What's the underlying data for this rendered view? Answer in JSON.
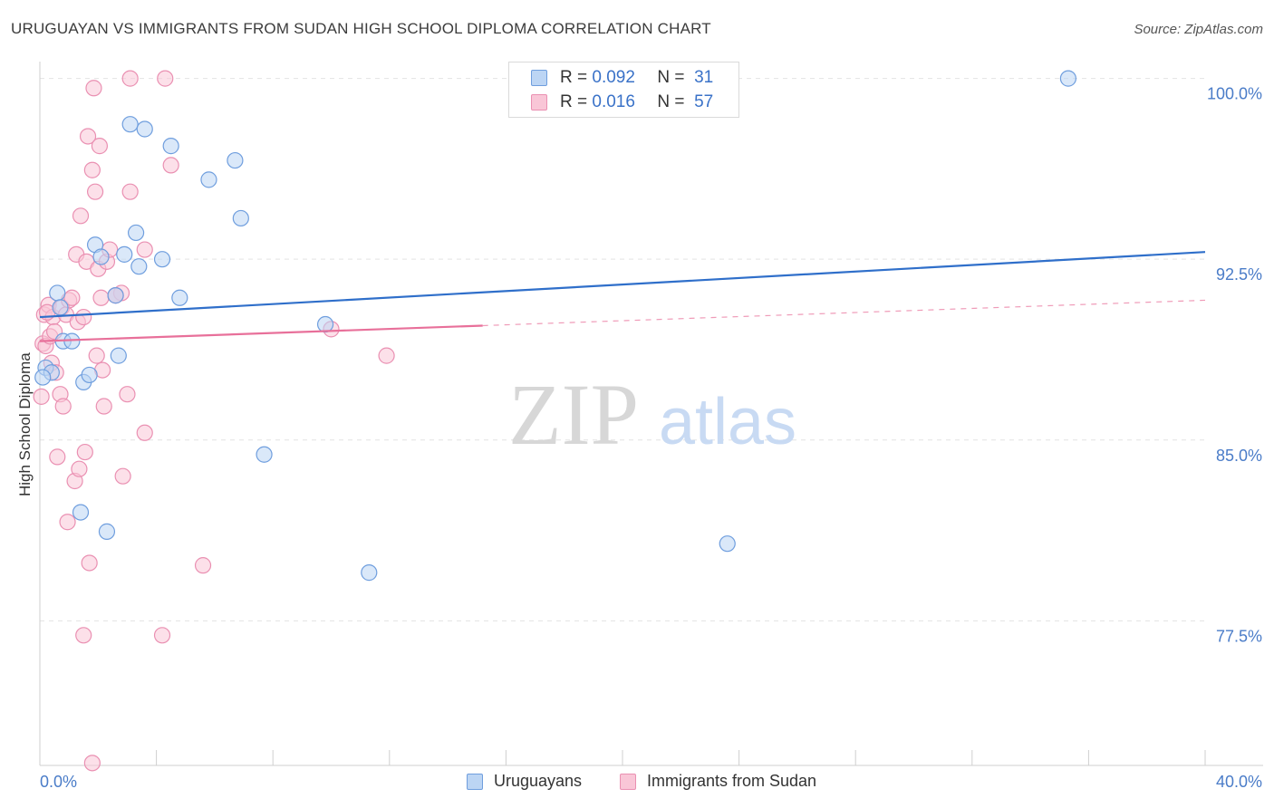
{
  "title": "URUGUAYAN VS IMMIGRANTS FROM SUDAN HIGH SCHOOL DIPLOMA CORRELATION CHART",
  "source": "Source: ZipAtlas.com",
  "watermark": {
    "zip": "ZIP",
    "atlas": "atlas"
  },
  "legend": {
    "blue": {
      "r_label": "R =",
      "r_value": "0.092",
      "n_label": "N =",
      "n_value": "31"
    },
    "pink": {
      "r_label": "R =",
      "r_value": "0.016",
      "n_label": "N =",
      "n_value": "57"
    }
  },
  "colors": {
    "blue_fill": "#bcd5f4",
    "blue_stroke": "#6f9ede",
    "blue_line": "#2f6fca",
    "pink_fill": "#f9c6d7",
    "pink_stroke": "#ea90b2",
    "pink_line": "#e8709a",
    "grid": "#e3e3e3",
    "axis_text": "#4a7cc8"
  },
  "chart_data": {
    "type": "scatter",
    "title": "URUGUAYAN VS IMMIGRANTS FROM SUDAN HIGH SCHOOL DIPLOMA CORRELATION CHART",
    "xlabel": "",
    "ylabel": "High School Diploma",
    "xlim": [
      0,
      40
    ],
    "ylim": [
      71.5,
      101
    ],
    "x_tick_labels": [
      {
        "value": 0,
        "label": "0.0%"
      },
      {
        "value": 40,
        "label": "40.0%"
      }
    ],
    "y_tick_labels": [
      {
        "value": 100,
        "label": "100.0%"
      },
      {
        "value": 92.5,
        "label": "92.5%"
      },
      {
        "value": 85,
        "label": "85.0%"
      },
      {
        "value": 77.5,
        "label": "77.5%"
      }
    ],
    "grid": true,
    "legend_position": "bottom-center",
    "series": [
      {
        "name": "Uruguayans",
        "color": "blue",
        "trend": {
          "x": [
            0,
            40
          ],
          "y": [
            90.1,
            92.8
          ],
          "dashed_from": null
        },
        "points": [
          {
            "x": 0.2,
            "y": 88.0
          },
          {
            "x": 0.4,
            "y": 87.8
          },
          {
            "x": 0.6,
            "y": 91.1
          },
          {
            "x": 0.7,
            "y": 90.5
          },
          {
            "x": 0.8,
            "y": 89.1
          },
          {
            "x": 1.1,
            "y": 89.1
          },
          {
            "x": 1.5,
            "y": 87.4
          },
          {
            "x": 1.7,
            "y": 87.7
          },
          {
            "x": 1.9,
            "y": 93.1
          },
          {
            "x": 2.1,
            "y": 92.6
          },
          {
            "x": 1.4,
            "y": 82.0
          },
          {
            "x": 2.3,
            "y": 81.2
          },
          {
            "x": 2.6,
            "y": 91.0
          },
          {
            "x": 2.7,
            "y": 88.5
          },
          {
            "x": 2.9,
            "y": 92.7
          },
          {
            "x": 3.1,
            "y": 98.1
          },
          {
            "x": 3.3,
            "y": 93.6
          },
          {
            "x": 3.4,
            "y": 92.2
          },
          {
            "x": 3.6,
            "y": 97.9
          },
          {
            "x": 4.2,
            "y": 92.5
          },
          {
            "x": 4.5,
            "y": 97.2
          },
          {
            "x": 4.8,
            "y": 90.9
          },
          {
            "x": 5.8,
            "y": 95.8
          },
          {
            "x": 6.7,
            "y": 96.6
          },
          {
            "x": 6.9,
            "y": 94.2
          },
          {
            "x": 7.7,
            "y": 84.4
          },
          {
            "x": 9.8,
            "y": 89.8
          },
          {
            "x": 11.3,
            "y": 79.5
          },
          {
            "x": 23.6,
            "y": 80.7
          },
          {
            "x": 35.3,
            "y": 100.0
          },
          {
            "x": 0.1,
            "y": 87.6
          }
        ]
      },
      {
        "name": "Immigrants from Sudan",
        "color": "pink",
        "trend": {
          "x": [
            0,
            40
          ],
          "y": [
            89.1,
            90.8
          ],
          "dashed_from": 15.2
        },
        "points": [
          {
            "x": 0.05,
            "y": 86.8
          },
          {
            "x": 0.1,
            "y": 89.0
          },
          {
            "x": 0.15,
            "y": 90.2
          },
          {
            "x": 0.2,
            "y": 88.9
          },
          {
            "x": 0.3,
            "y": 90.6
          },
          {
            "x": 0.35,
            "y": 89.3
          },
          {
            "x": 0.4,
            "y": 88.2
          },
          {
            "x": 0.45,
            "y": 90.1
          },
          {
            "x": 0.5,
            "y": 89.5
          },
          {
            "x": 0.55,
            "y": 87.8
          },
          {
            "x": 0.6,
            "y": 84.3
          },
          {
            "x": 0.7,
            "y": 86.9
          },
          {
            "x": 0.75,
            "y": 90.5
          },
          {
            "x": 0.8,
            "y": 86.4
          },
          {
            "x": 0.9,
            "y": 90.2
          },
          {
            "x": 0.95,
            "y": 81.6
          },
          {
            "x": 1.0,
            "y": 90.8
          },
          {
            "x": 1.1,
            "y": 90.9
          },
          {
            "x": 1.2,
            "y": 83.3
          },
          {
            "x": 1.25,
            "y": 92.7
          },
          {
            "x": 1.3,
            "y": 89.9
          },
          {
            "x": 1.35,
            "y": 83.8
          },
          {
            "x": 1.4,
            "y": 94.3
          },
          {
            "x": 1.5,
            "y": 90.1
          },
          {
            "x": 1.55,
            "y": 84.5
          },
          {
            "x": 1.6,
            "y": 92.4
          },
          {
            "x": 1.65,
            "y": 97.6
          },
          {
            "x": 1.7,
            "y": 79.9
          },
          {
            "x": 1.8,
            "y": 96.2
          },
          {
            "x": 1.85,
            "y": 99.6
          },
          {
            "x": 1.9,
            "y": 95.3
          },
          {
            "x": 1.95,
            "y": 88.5
          },
          {
            "x": 2.0,
            "y": 92.1
          },
          {
            "x": 2.05,
            "y": 97.2
          },
          {
            "x": 2.1,
            "y": 90.9
          },
          {
            "x": 2.15,
            "y": 87.9
          },
          {
            "x": 2.2,
            "y": 86.4
          },
          {
            "x": 2.3,
            "y": 92.4
          },
          {
            "x": 2.4,
            "y": 92.9
          },
          {
            "x": 2.6,
            "y": 91.0
          },
          {
            "x": 2.8,
            "y": 91.1
          },
          {
            "x": 2.85,
            "y": 83.5
          },
          {
            "x": 3.0,
            "y": 86.9
          },
          {
            "x": 3.1,
            "y": 100.0
          },
          {
            "x": 3.1,
            "y": 95.3
          },
          {
            "x": 3.6,
            "y": 85.3
          },
          {
            "x": 3.6,
            "y": 92.9
          },
          {
            "x": 4.3,
            "y": 100.0
          },
          {
            "x": 4.5,
            "y": 96.4
          },
          {
            "x": 5.6,
            "y": 79.8
          },
          {
            "x": 1.5,
            "y": 76.9
          },
          {
            "x": 4.2,
            "y": 76.9
          },
          {
            "x": 1.8,
            "y": 71.6
          },
          {
            "x": 10.0,
            "y": 89.6
          },
          {
            "x": 11.9,
            "y": 88.5
          },
          {
            "x": 2.6,
            "y": 91.0
          },
          {
            "x": 0.25,
            "y": 90.3
          }
        ]
      }
    ]
  },
  "bottom_legend": {
    "blue_label": "Uruguayans",
    "pink_label": "Immigrants from Sudan"
  }
}
